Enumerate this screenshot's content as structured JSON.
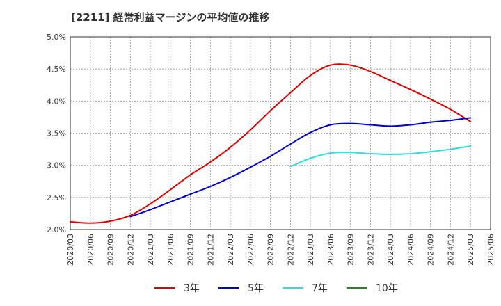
{
  "chart_data": {
    "type": "line",
    "title": "[2211]  経常利益マージンの平均値の推移",
    "xlabel": "",
    "ylabel": "",
    "x_ticks": [
      "2020/03",
      "2020/06",
      "2020/09",
      "2020/12",
      "2021/03",
      "2021/06",
      "2021/09",
      "2021/12",
      "2022/03",
      "2022/06",
      "2022/09",
      "2022/12",
      "2023/03",
      "2023/06",
      "2023/09",
      "2023/12",
      "2024/03",
      "2024/06",
      "2024/09",
      "2024/12",
      "2025/03",
      "2025/06"
    ],
    "y_ticks": [
      "2.0%",
      "2.5%",
      "3.0%",
      "3.5%",
      "4.0%",
      "4.5%",
      "5.0%"
    ],
    "ylim": [
      2.0,
      5.0
    ],
    "grid": true,
    "legend_position": "bottom",
    "series": [
      {
        "name": "3年",
        "color": "#dd0000",
        "x": [
          "2020/03",
          "2020/06",
          "2020/09",
          "2020/12",
          "2021/03",
          "2021/06",
          "2021/09",
          "2021/12",
          "2022/03",
          "2022/06",
          "2022/09",
          "2022/12",
          "2023/03",
          "2023/06",
          "2023/09",
          "2023/12",
          "2024/03",
          "2024/06",
          "2024/09",
          "2024/12",
          "2025/03"
        ],
        "values": [
          2.12,
          2.1,
          2.13,
          2.22,
          2.4,
          2.62,
          2.85,
          3.05,
          3.28,
          3.55,
          3.85,
          4.13,
          4.4,
          4.56,
          4.56,
          4.46,
          4.32,
          4.18,
          4.03,
          3.87,
          3.68
        ]
      },
      {
        "name": "5年",
        "color": "#0000cc",
        "x": [
          "2020/12",
          "2021/03",
          "2021/06",
          "2021/09",
          "2021/12",
          "2022/03",
          "2022/06",
          "2022/09",
          "2022/12",
          "2023/03",
          "2023/06",
          "2023/09",
          "2023/12",
          "2024/03",
          "2024/06",
          "2024/09",
          "2024/12",
          "2025/03"
        ],
        "values": [
          2.2,
          2.31,
          2.43,
          2.55,
          2.67,
          2.81,
          2.97,
          3.14,
          3.33,
          3.51,
          3.63,
          3.65,
          3.63,
          3.61,
          3.63,
          3.67,
          3.7,
          3.74
        ]
      },
      {
        "name": "7年",
        "color": "#33dddd",
        "x": [
          "2022/12",
          "2023/03",
          "2023/06",
          "2023/09",
          "2023/12",
          "2024/03",
          "2024/06",
          "2024/09",
          "2024/12",
          "2025/03"
        ],
        "values": [
          2.98,
          3.11,
          3.19,
          3.2,
          3.18,
          3.17,
          3.18,
          3.21,
          3.25,
          3.3
        ]
      },
      {
        "name": "10年",
        "color": "#228822",
        "x": [],
        "values": []
      }
    ]
  }
}
